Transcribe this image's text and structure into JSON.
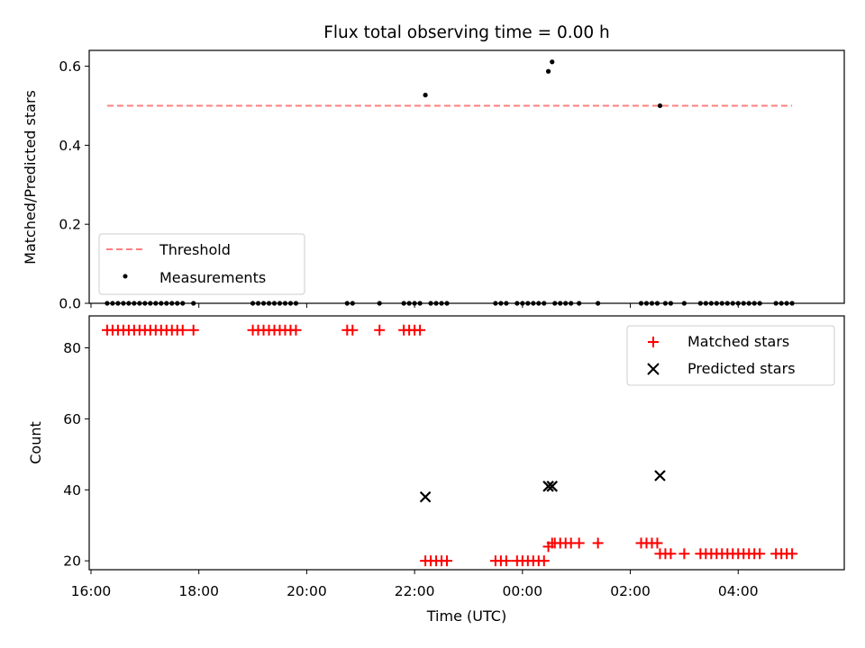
{
  "chart_data": [
    {
      "type": "scatter",
      "title": "Flux total observing time = 0.00 h",
      "xlabel": "",
      "ylabel": "Matched/Predicted stars",
      "ylim": [
        0.0,
        0.64
      ],
      "yticks": [
        0.0,
        0.2,
        0.4,
        0.6
      ],
      "ytick_labels": [
        "0.0",
        "0.2",
        "0.4",
        "0.6"
      ],
      "xlim_hours": [
        15.967,
        29.967
      ],
      "legend_position": "lower-left",
      "threshold": {
        "name": "Threshold",
        "y": 0.5,
        "x_start_hours": 16.3,
        "x_end_hours": 29.0,
        "color": "#ff7f7f"
      },
      "series": [
        {
          "name": "Measurements",
          "color": "#000000",
          "points": [
            [
              16.3,
              0
            ],
            [
              16.4,
              0
            ],
            [
              16.5,
              0
            ],
            [
              16.6,
              0
            ],
            [
              16.7,
              0
            ],
            [
              16.8,
              0
            ],
            [
              16.9,
              0
            ],
            [
              17.0,
              0
            ],
            [
              17.1,
              0
            ],
            [
              17.2,
              0
            ],
            [
              17.3,
              0
            ],
            [
              17.4,
              0
            ],
            [
              17.5,
              0
            ],
            [
              17.6,
              0
            ],
            [
              17.7,
              0
            ],
            [
              17.9,
              0
            ],
            [
              19.0,
              0
            ],
            [
              19.1,
              0
            ],
            [
              19.2,
              0
            ],
            [
              19.3,
              0
            ],
            [
              19.4,
              0
            ],
            [
              19.5,
              0
            ],
            [
              19.6,
              0
            ],
            [
              19.7,
              0
            ],
            [
              19.8,
              0
            ],
            [
              20.75,
              0
            ],
            [
              20.85,
              0
            ],
            [
              21.35,
              0
            ],
            [
              21.8,
              0
            ],
            [
              21.9,
              0
            ],
            [
              22.0,
              0
            ],
            [
              22.1,
              0
            ],
            [
              22.2,
              0.527
            ],
            [
              22.3,
              0
            ],
            [
              22.4,
              0
            ],
            [
              22.5,
              0
            ],
            [
              22.6,
              0
            ],
            [
              23.5,
              0
            ],
            [
              23.6,
              0
            ],
            [
              23.7,
              0
            ],
            [
              23.9,
              0
            ],
            [
              24.0,
              0
            ],
            [
              24.1,
              0
            ],
            [
              24.2,
              0
            ],
            [
              24.3,
              0
            ],
            [
              24.4,
              0
            ],
            [
              24.48,
              0.587
            ],
            [
              24.55,
              0.611
            ],
            [
              24.6,
              0
            ],
            [
              24.7,
              0
            ],
            [
              24.8,
              0
            ],
            [
              24.9,
              0
            ],
            [
              25.05,
              0
            ],
            [
              25.4,
              0
            ],
            [
              26.2,
              0
            ],
            [
              26.3,
              0
            ],
            [
              26.4,
              0
            ],
            [
              26.5,
              0
            ],
            [
              26.55,
              0.5
            ],
            [
              26.65,
              0
            ],
            [
              26.75,
              0
            ],
            [
              27.0,
              0
            ],
            [
              27.3,
              0
            ],
            [
              27.4,
              0
            ],
            [
              27.5,
              0
            ],
            [
              27.6,
              0
            ],
            [
              27.7,
              0
            ],
            [
              27.8,
              0
            ],
            [
              27.9,
              0
            ],
            [
              28.0,
              0
            ],
            [
              28.1,
              0
            ],
            [
              28.2,
              0
            ],
            [
              28.3,
              0
            ],
            [
              28.4,
              0
            ],
            [
              28.7,
              0
            ],
            [
              28.8,
              0
            ],
            [
              28.9,
              0
            ],
            [
              29.0,
              0
            ]
          ]
        }
      ]
    },
    {
      "type": "scatter",
      "title": "",
      "xlabel": "Time (UTC)",
      "ylabel": "Count",
      "ylim": [
        17.5,
        89
      ],
      "yticks": [
        20,
        40,
        60,
        80
      ],
      "ytick_labels": [
        "20",
        "40",
        "60",
        "80"
      ],
      "xticks_hours": [
        16,
        18,
        20,
        22,
        24,
        26,
        28
      ],
      "xtick_labels": [
        "16:00",
        "18:00",
        "20:00",
        "22:00",
        "00:00",
        "02:00",
        "04:00"
      ],
      "xlim_hours": [
        15.967,
        29.967
      ],
      "legend_position": "upper-right",
      "series": [
        {
          "name": "Matched stars",
          "color": "#ff0000",
          "marker": "plus",
          "points": [
            [
              16.3,
              85
            ],
            [
              16.4,
              85
            ],
            [
              16.5,
              85
            ],
            [
              16.6,
              85
            ],
            [
              16.7,
              85
            ],
            [
              16.8,
              85
            ],
            [
              16.9,
              85
            ],
            [
              17.0,
              85
            ],
            [
              17.1,
              85
            ],
            [
              17.2,
              85
            ],
            [
              17.3,
              85
            ],
            [
              17.4,
              85
            ],
            [
              17.5,
              85
            ],
            [
              17.6,
              85
            ],
            [
              17.7,
              85
            ],
            [
              17.9,
              85
            ],
            [
              19.0,
              85
            ],
            [
              19.1,
              85
            ],
            [
              19.2,
              85
            ],
            [
              19.3,
              85
            ],
            [
              19.4,
              85
            ],
            [
              19.5,
              85
            ],
            [
              19.6,
              85
            ],
            [
              19.7,
              85
            ],
            [
              19.8,
              85
            ],
            [
              20.75,
              85
            ],
            [
              20.85,
              85
            ],
            [
              21.35,
              85
            ],
            [
              21.8,
              85
            ],
            [
              21.9,
              85
            ],
            [
              22.0,
              85
            ],
            [
              22.1,
              85
            ],
            [
              22.2,
              20
            ],
            [
              22.3,
              20
            ],
            [
              22.4,
              20
            ],
            [
              22.5,
              20
            ],
            [
              22.6,
              20
            ],
            [
              23.5,
              20
            ],
            [
              23.6,
              20
            ],
            [
              23.7,
              20
            ],
            [
              23.9,
              20
            ],
            [
              24.0,
              20
            ],
            [
              24.1,
              20
            ],
            [
              24.2,
              20
            ],
            [
              24.3,
              20
            ],
            [
              24.4,
              20
            ],
            [
              24.48,
              24
            ],
            [
              24.55,
              25
            ],
            [
              24.6,
              25
            ],
            [
              24.7,
              25
            ],
            [
              24.8,
              25
            ],
            [
              24.9,
              25
            ],
            [
              25.05,
              25
            ],
            [
              25.4,
              25
            ],
            [
              26.2,
              25
            ],
            [
              26.3,
              25
            ],
            [
              26.4,
              25
            ],
            [
              26.5,
              25
            ],
            [
              26.55,
              22
            ],
            [
              26.65,
              22
            ],
            [
              26.75,
              22
            ],
            [
              27.0,
              22
            ],
            [
              27.3,
              22
            ],
            [
              27.4,
              22
            ],
            [
              27.5,
              22
            ],
            [
              27.6,
              22
            ],
            [
              27.7,
              22
            ],
            [
              27.8,
              22
            ],
            [
              27.9,
              22
            ],
            [
              28.0,
              22
            ],
            [
              28.1,
              22
            ],
            [
              28.2,
              22
            ],
            [
              28.3,
              22
            ],
            [
              28.4,
              22
            ],
            [
              28.7,
              22
            ],
            [
              28.8,
              22
            ],
            [
              28.9,
              22
            ],
            [
              29.0,
              22
            ]
          ]
        },
        {
          "name": "Predicted stars",
          "color": "#000000",
          "marker": "x",
          "points": [
            [
              22.2,
              38
            ],
            [
              24.48,
              41
            ],
            [
              24.55,
              41
            ],
            [
              26.55,
              44
            ]
          ]
        }
      ]
    }
  ]
}
